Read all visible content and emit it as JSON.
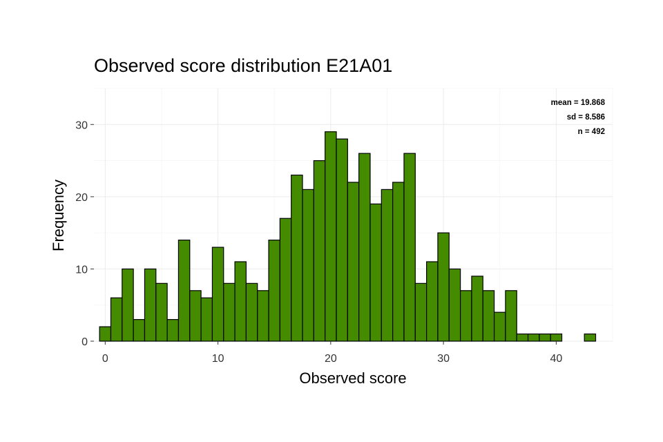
{
  "chart_data": {
    "type": "bar",
    "title": "Observed score distribution E21A01",
    "xlabel": "Observed score",
    "ylabel": "Frequency",
    "xlim": [
      -1,
      45
    ],
    "ylim": [
      0,
      35
    ],
    "x_ticks": [
      0,
      10,
      20,
      30,
      40
    ],
    "y_ticks": [
      0,
      10,
      20,
      30
    ],
    "grid": true,
    "bar_color": "#458b00",
    "bins": [
      {
        "x": 0,
        "count": 2
      },
      {
        "x": 1,
        "count": 6
      },
      {
        "x": 2,
        "count": 10
      },
      {
        "x": 3,
        "count": 3
      },
      {
        "x": 4,
        "count": 10
      },
      {
        "x": 5,
        "count": 8
      },
      {
        "x": 6,
        "count": 3
      },
      {
        "x": 7,
        "count": 14
      },
      {
        "x": 8,
        "count": 7
      },
      {
        "x": 9,
        "count": 6
      },
      {
        "x": 10,
        "count": 13
      },
      {
        "x": 11,
        "count": 8
      },
      {
        "x": 12,
        "count": 11
      },
      {
        "x": 13,
        "count": 8
      },
      {
        "x": 14,
        "count": 7
      },
      {
        "x": 15,
        "count": 14
      },
      {
        "x": 16,
        "count": 17
      },
      {
        "x": 17,
        "count": 23
      },
      {
        "x": 18,
        "count": 21
      },
      {
        "x": 19,
        "count": 25
      },
      {
        "x": 20,
        "count": 29
      },
      {
        "x": 21,
        "count": 28
      },
      {
        "x": 22,
        "count": 22
      },
      {
        "x": 23,
        "count": 26
      },
      {
        "x": 24,
        "count": 19
      },
      {
        "x": 25,
        "count": 21
      },
      {
        "x": 26,
        "count": 22
      },
      {
        "x": 27,
        "count": 26
      },
      {
        "x": 28,
        "count": 8
      },
      {
        "x": 29,
        "count": 11
      },
      {
        "x": 30,
        "count": 15
      },
      {
        "x": 31,
        "count": 10
      },
      {
        "x": 32,
        "count": 7
      },
      {
        "x": 33,
        "count": 9
      },
      {
        "x": 34,
        "count": 7
      },
      {
        "x": 35,
        "count": 4
      },
      {
        "x": 36,
        "count": 7
      },
      {
        "x": 37,
        "count": 1
      },
      {
        "x": 38,
        "count": 1
      },
      {
        "x": 39,
        "count": 1
      },
      {
        "x": 40,
        "count": 1
      },
      {
        "x": 41,
        "count": 0
      },
      {
        "x": 42,
        "count": 0
      },
      {
        "x": 43,
        "count": 1
      }
    ],
    "annotations": [
      {
        "label": "mean = ",
        "value": "19.868"
      },
      {
        "label": "sd = ",
        "value": "8.586"
      },
      {
        "label": "n = ",
        "value": "492"
      }
    ]
  }
}
